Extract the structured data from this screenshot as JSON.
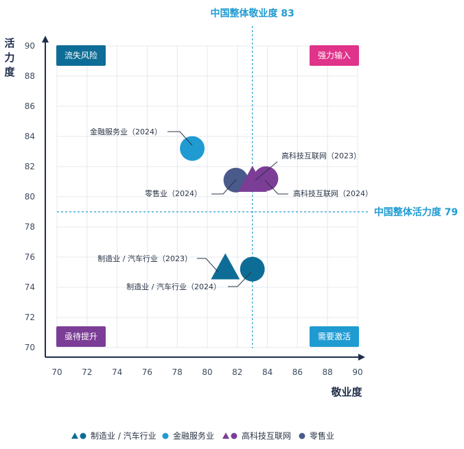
{
  "chart_data": {
    "type": "scatter",
    "xlabel": "敬业度",
    "ylabel": "活力度",
    "xlim": [
      70,
      90
    ],
    "ylim": [
      70,
      90
    ],
    "x_ticks": [
      70,
      72,
      74,
      76,
      78,
      80,
      82,
      84,
      86,
      88,
      90
    ],
    "y_ticks": [
      70,
      72,
      74,
      76,
      78,
      80,
      82,
      84,
      86,
      88,
      90
    ],
    "grid": true,
    "reference_lines": {
      "x": {
        "value": 83,
        "label": "中国整体敬业度 83"
      },
      "y": {
        "value": 79,
        "label": "中国整体活力度 79"
      }
    },
    "quadrants": [
      {
        "label": "流失风险",
        "position": "top-left",
        "color": "#0e6d96"
      },
      {
        "label": "强力输入",
        "position": "top-right",
        "color": "#e0338a"
      },
      {
        "label": "亟待提升",
        "position": "bottom-left",
        "color": "#7b3d96"
      },
      {
        "label": "需要激活",
        "position": "bottom-right",
        "color": "#1f9bd2"
      }
    ],
    "points": [
      {
        "label": "金融服务业（2024）",
        "x": 79,
        "y": 83.2,
        "shape": "circle",
        "color": "#1f9bd2"
      },
      {
        "label": "零售业（2024）",
        "x": 81.9,
        "y": 81.1,
        "shape": "circle",
        "color": "#4a5a8a"
      },
      {
        "label": "高科技互联网（2024）",
        "x": 83.9,
        "y": 81.2,
        "shape": "circle",
        "color": "#7b3d96"
      },
      {
        "label": "高科技互联网（2023）",
        "x": 83,
        "y": 81.1,
        "shape": "triangle",
        "color": "#7b3d96"
      },
      {
        "label": "制造业 / 汽车行业（2023）",
        "x": 81.2,
        "y": 75.3,
        "shape": "triangle",
        "color": "#0e6d96"
      },
      {
        "label": "制造业 / 汽车行业（2024）",
        "x": 83,
        "y": 75.2,
        "shape": "circle",
        "color": "#0e6d96"
      }
    ],
    "legend": {
      "placement": "bottom",
      "entries": [
        {
          "label": "制造业 / 汽车行业",
          "markers": [
            "triangle",
            "circle"
          ],
          "color": "#0e6d96"
        },
        {
          "label": "金融服务业",
          "markers": [
            "circle"
          ],
          "color": "#1f9bd2"
        },
        {
          "label": "高科技互联网",
          "markers": [
            "triangle",
            "circle"
          ],
          "color": "#7b3d96"
        },
        {
          "label": "零售业",
          "markers": [
            "circle"
          ],
          "color": "#4a5a8a"
        }
      ]
    },
    "colors": {
      "axis": "#1f2d4a",
      "grid": "#e4e8ee",
      "reference": "#1f9bd2"
    }
  }
}
